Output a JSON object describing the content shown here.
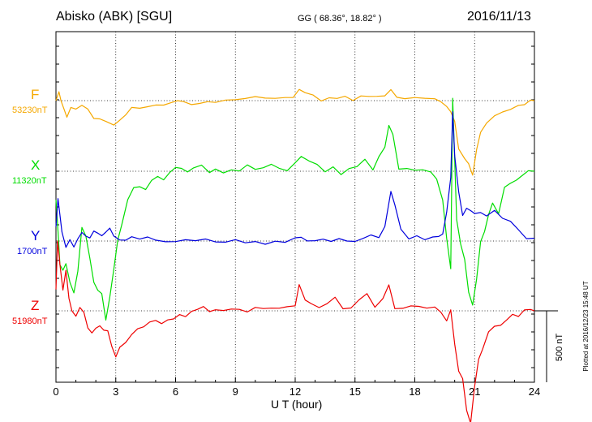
{
  "header": {
    "station": "Abisko (ABK)  [SGU]",
    "coords": "GG ( 68.36°,  18.82° )",
    "date": "2016/11/13"
  },
  "footer": {
    "plotted": "Plotted at 2016/12/23 15:48 UT"
  },
  "chart_data": {
    "type": "line",
    "xlabel": "U T (hour)",
    "xlim": [
      0,
      24
    ],
    "xticks": [
      0,
      3,
      6,
      9,
      12,
      15,
      18,
      21,
      24
    ],
    "grid": true,
    "scale_bar": {
      "label": "500 nT",
      "value_nT": 500
    },
    "nT_per_unit": 1,
    "colors": {
      "F": "#f5a800",
      "X": "#00dd00",
      "Y": "#0000dd",
      "Z": "#ee0000"
    },
    "series": [
      {
        "name": "F",
        "baseline_label": "53230nT",
        "x": [
          0,
          0.15,
          0.25,
          0.4,
          0.55,
          0.75,
          1.0,
          1.3,
          1.6,
          1.9,
          2.2,
          2.5,
          2.9,
          3.2,
          3.5,
          3.8,
          4.2,
          4.6,
          5.0,
          5.4,
          5.8,
          6.1,
          6.4,
          6.8,
          7.2,
          7.6,
          8.0,
          8.5,
          9.0,
          9.5,
          10.0,
          10.5,
          11.0,
          11.5,
          11.9,
          12.2,
          12.5,
          12.9,
          13.3,
          13.7,
          14.1,
          14.5,
          14.9,
          15.3,
          15.7,
          16.1,
          16.5,
          16.8,
          17.1,
          17.5,
          18.0,
          18.5,
          19.0,
          19.3,
          19.6,
          19.8,
          20.0,
          20.2,
          20.5,
          20.7,
          20.9,
          21.1,
          21.3,
          21.6,
          22.0,
          22.4,
          22.8,
          23.2,
          23.5,
          23.8,
          24.0
        ],
        "y": [
          0,
          60,
          0,
          -60,
          -110,
          -50,
          -70,
          -40,
          -60,
          -120,
          -120,
          -140,
          -170,
          -130,
          -90,
          -40,
          -60,
          -40,
          -40,
          -30,
          -20,
          0,
          0,
          -30,
          -10,
          -10,
          -5,
          5,
          0,
          5,
          20,
          15,
          20,
          30,
          20,
          80,
          60,
          30,
          0,
          10,
          20,
          25,
          10,
          30,
          40,
          25,
          40,
          80,
          20,
          10,
          15,
          10,
          10,
          -10,
          -40,
          -80,
          -140,
          -330,
          -400,
          -440,
          -530,
          -350,
          -220,
          -160,
          -110,
          -80,
          -60,
          -30,
          -30,
          0,
          0
        ]
      },
      {
        "name": "X",
        "baseline_label": "11320nT",
        "x": [
          0,
          0.1,
          0.2,
          0.35,
          0.5,
          0.7,
          0.9,
          1.1,
          1.3,
          1.5,
          1.7,
          1.9,
          2.1,
          2.3,
          2.5,
          2.7,
          2.9,
          3.1,
          3.3,
          3.6,
          3.9,
          4.2,
          4.5,
          4.8,
          5.1,
          5.4,
          5.7,
          6.0,
          6.3,
          6.6,
          6.9,
          7.3,
          7.7,
          8.0,
          8.4,
          8.8,
          9.2,
          9.6,
          10.0,
          10.4,
          10.8,
          11.2,
          11.6,
          12.0,
          12.3,
          12.7,
          13.1,
          13.5,
          13.9,
          14.3,
          14.7,
          15.1,
          15.5,
          15.9,
          16.2,
          16.5,
          16.7,
          16.9,
          17.2,
          17.6,
          18.0,
          18.4,
          18.8,
          19.1,
          19.4,
          19.6,
          19.8,
          19.9,
          20.1,
          20.3,
          20.5,
          20.7,
          20.9,
          21.1,
          21.3,
          21.5,
          21.7,
          21.9,
          22.2,
          22.5,
          22.8,
          23.1,
          23.4,
          23.7,
          24.0
        ],
        "y": [
          -200,
          -420,
          -650,
          -700,
          -640,
          -780,
          -860,
          -700,
          -390,
          -460,
          -620,
          -780,
          -830,
          -860,
          -1050,
          -880,
          -680,
          -480,
          -380,
          -200,
          -110,
          -100,
          -120,
          -60,
          -40,
          -70,
          -20,
          20,
          20,
          0,
          30,
          40,
          0,
          20,
          -10,
          10,
          0,
          40,
          10,
          20,
          50,
          20,
          10,
          60,
          100,
          80,
          40,
          0,
          20,
          -20,
          10,
          40,
          80,
          20,
          110,
          170,
          330,
          260,
          20,
          10,
          10,
          0,
          0,
          -50,
          -200,
          -460,
          -680,
          520,
          -330,
          -510,
          -620,
          -840,
          -930,
          -760,
          -500,
          -420,
          -300,
          -230,
          -300,
          -110,
          -80,
          -60,
          -30,
          0,
          0
        ]
      },
      {
        "name": "Y",
        "baseline_label": "1700nT",
        "x": [
          0,
          0.1,
          0.3,
          0.5,
          0.7,
          0.9,
          1.1,
          1.3,
          1.5,
          1.7,
          1.9,
          2.1,
          2.3,
          2.5,
          2.7,
          2.9,
          3.2,
          3.5,
          3.8,
          4.2,
          4.6,
          5.0,
          5.5,
          6.0,
          6.5,
          7.0,
          7.5,
          8.0,
          8.5,
          9.0,
          9.5,
          10.0,
          10.5,
          11.0,
          11.5,
          12.0,
          12.3,
          12.6,
          13.0,
          13.4,
          13.8,
          14.2,
          14.6,
          15.0,
          15.4,
          15.8,
          16.2,
          16.5,
          16.8,
          17.0,
          17.3,
          17.7,
          18.1,
          18.5,
          18.9,
          19.2,
          19.4,
          19.6,
          19.8,
          19.9,
          20.0,
          20.2,
          20.4,
          20.6,
          20.8,
          21.0,
          21.3,
          21.6,
          22.0,
          22.4,
          22.8,
          23.2,
          23.6,
          24.0
        ],
        "y": [
          100,
          300,
          60,
          -40,
          20,
          -40,
          10,
          60,
          40,
          20,
          60,
          50,
          40,
          60,
          80,
          30,
          0,
          0,
          30,
          20,
          30,
          10,
          0,
          0,
          10,
          0,
          10,
          -10,
          -10,
          10,
          -10,
          0,
          -20,
          0,
          -10,
          20,
          30,
          10,
          0,
          20,
          -10,
          20,
          -10,
          0,
          10,
          50,
          20,
          100,
          350,
          250,
          80,
          20,
          30,
          10,
          20,
          30,
          40,
          200,
          450,
          900,
          600,
          340,
          180,
          240,
          220,
          190,
          200,
          180,
          210,
          160,
          130,
          80,
          10,
          20
        ]
      },
      {
        "name": "Z",
        "baseline_label": "51980nT",
        "x": [
          0,
          0.08,
          0.2,
          0.35,
          0.5,
          0.65,
          0.8,
          1.0,
          1.2,
          1.4,
          1.6,
          1.8,
          2.0,
          2.2,
          2.4,
          2.6,
          2.8,
          3.0,
          3.2,
          3.5,
          3.8,
          4.1,
          4.4,
          4.7,
          5.0,
          5.3,
          5.6,
          5.9,
          6.2,
          6.5,
          6.8,
          7.1,
          7.4,
          7.7,
          8.0,
          8.4,
          8.8,
          9.2,
          9.6,
          10.0,
          10.4,
          10.8,
          11.2,
          11.6,
          12.0,
          12.2,
          12.5,
          12.8,
          13.2,
          13.6,
          14.0,
          14.4,
          14.8,
          15.2,
          15.6,
          16.0,
          16.4,
          16.7,
          17.0,
          17.4,
          17.8,
          18.2,
          18.6,
          19.0,
          19.3,
          19.6,
          19.8,
          20.0,
          20.2,
          20.4,
          20.6,
          20.8,
          21.0,
          21.2,
          21.4,
          21.7,
          22.0,
          22.3,
          22.6,
          22.9,
          23.2,
          23.5,
          23.8,
          24.0
        ],
        "y": [
          150,
          500,
          320,
          150,
          280,
          90,
          0,
          -40,
          30,
          0,
          -120,
          -160,
          -120,
          -100,
          -140,
          -150,
          -250,
          -320,
          -260,
          -220,
          -160,
          -120,
          -110,
          -80,
          -70,
          -90,
          -60,
          -50,
          -20,
          -40,
          -10,
          0,
          20,
          -10,
          10,
          0,
          20,
          10,
          0,
          20,
          20,
          10,
          20,
          20,
          40,
          180,
          80,
          60,
          20,
          60,
          90,
          20,
          10,
          80,
          110,
          30,
          80,
          180,
          20,
          20,
          40,
          30,
          20,
          20,
          -20,
          -80,
          0,
          -230,
          -420,
          -480,
          -700,
          -780,
          -520,
          -340,
          -270,
          -150,
          -110,
          -100,
          -60,
          -20,
          -40,
          0,
          0,
          0
        ]
      }
    ]
  }
}
